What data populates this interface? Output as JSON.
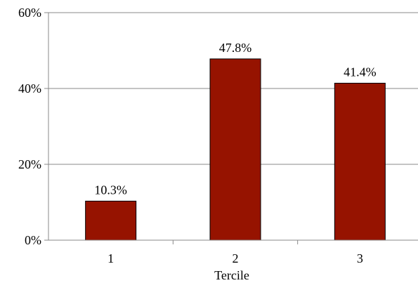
{
  "chart_data": {
    "type": "bar",
    "categories": [
      "1",
      "2",
      "3"
    ],
    "values": [
      10.3,
      47.8,
      41.4
    ],
    "data_labels": [
      "10.3%",
      "47.8%",
      "41.4%"
    ],
    "xlabel": "Tercile",
    "ylabel": "",
    "ylim": [
      0,
      60
    ],
    "yticks": [
      0,
      20,
      40,
      60
    ],
    "ytick_labels": [
      "0%",
      "20%",
      "40%",
      "60%"
    ],
    "grid": true,
    "legend": "none",
    "bar_color": "#961300",
    "bar_edge_color": "#000000",
    "grid_color": "#888888"
  }
}
